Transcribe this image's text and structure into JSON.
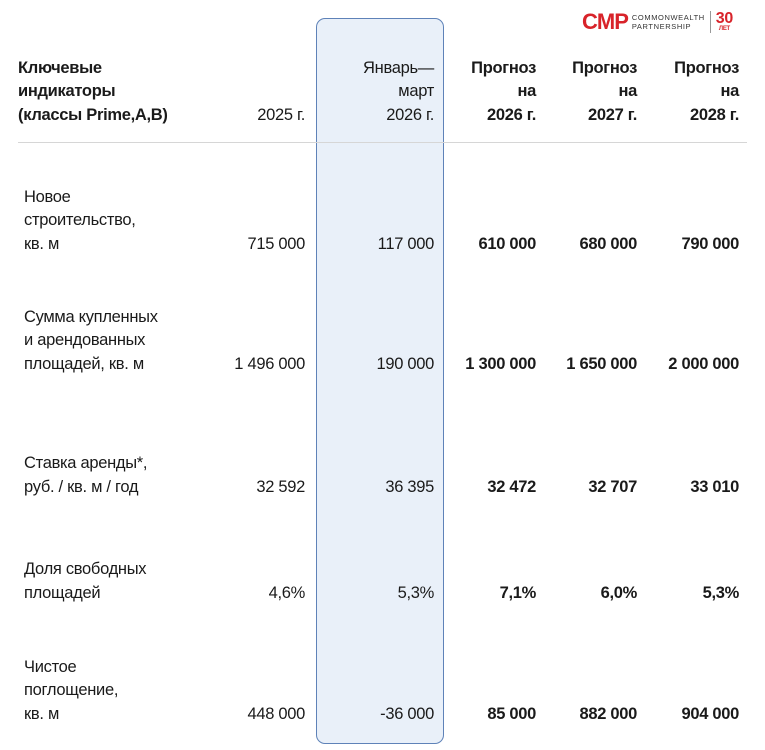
{
  "logo": {
    "brand": "CMP",
    "name_line1": "COMMONWEALTH",
    "name_line2": "PARTNERSHIP",
    "anniversary": "30",
    "anniversary_sub": "ЛЕТ"
  },
  "header": {
    "label": [
      "Ключевые",
      "индикаторы",
      "(классы Prime,A,B)"
    ],
    "columns": [
      [
        "2025 г."
      ],
      [
        "Январь—",
        "март",
        "2026 г."
      ],
      [
        "Прогноз",
        "на",
        "2026 г."
      ],
      [
        "Прогноз",
        "на",
        "2027 г."
      ],
      [
        "Прогноз",
        "на",
        "2028 г."
      ]
    ]
  },
  "rows": [
    {
      "label": [
        "Новое",
        "строительство,",
        "кв. м"
      ],
      "values": [
        "715 000",
        "117 000",
        "610 000",
        "680 000",
        "790 000"
      ]
    },
    {
      "label": [
        "Сумма купленных",
        "и арендованных",
        "площадей, кв. м"
      ],
      "values": [
        "1 496 000",
        "190 000",
        "1 300 000",
        "1 650 000",
        "2 000 000"
      ]
    },
    {
      "label": [
        "Ставка аренды*,",
        "руб. / кв. м / год"
      ],
      "values": [
        "32 592",
        "36 395",
        "32 472",
        "32 707",
        "33 010"
      ]
    },
    {
      "label": [
        "Доля свободных",
        "площадей"
      ],
      "values": [
        "4,6%",
        "5,3%",
        "7,1%",
        "6,0%",
        "5,3%"
      ]
    },
    {
      "label": [
        "Чистое",
        "поглощение,",
        "кв. м"
      ],
      "values": [
        "448 000",
        "-36 000",
        "85 000",
        "882 000",
        "904 000"
      ]
    }
  ],
  "colors": {
    "highlight_bg": "#e9f0f9",
    "highlight_border": "#5e82b8",
    "brand_red": "#d8232a"
  }
}
